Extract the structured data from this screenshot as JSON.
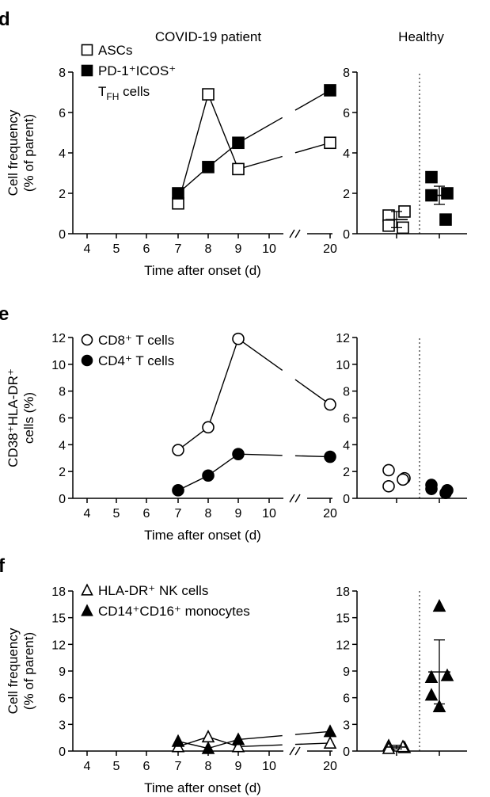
{
  "figure": {
    "panel_labels": [
      "d",
      "e",
      "f"
    ],
    "header_left": "COVID-19 patient",
    "header_right": "Healthy"
  },
  "chart_data": [
    {
      "panel": "d",
      "type": "line",
      "xlabel": "Time after onset (d)",
      "ylabel_lines": [
        "Cell frequency",
        "(% of parent)"
      ],
      "xticks": [
        "4",
        "5",
        "6",
        "7",
        "8",
        "9",
        "10",
        "20"
      ],
      "yticks": [
        "0",
        "2",
        "4",
        "6",
        "8"
      ],
      "ylim": [
        0,
        8
      ],
      "axis_break": "//",
      "series": [
        {
          "name": "ASCs",
          "marker": "square",
          "filled": false,
          "x": [
            "7",
            "8",
            "9",
            "20"
          ],
          "y": [
            1.5,
            6.9,
            3.2,
            4.5
          ]
        },
        {
          "name": "PD-1⁺ICOS⁺",
          "name_line2": "T",
          "name_line2_sub": "FH",
          "name_line2_tail": " cells",
          "marker": "square",
          "filled": true,
          "x": [
            "7",
            "8",
            "9",
            "20"
          ],
          "y": [
            2.0,
            3.3,
            4.5,
            7.1
          ]
        }
      ],
      "healthy": {
        "yticks": [
          "0",
          "2",
          "4",
          "6",
          "8"
        ],
        "groups": [
          {
            "marker": "square",
            "filled": false,
            "points": [
              0.9,
              1.1,
              0.4,
              0.3
            ],
            "mean": 0.7,
            "sd": 0.4
          },
          {
            "marker": "square",
            "filled": true,
            "points": [
              2.8,
              2.0,
              1.9,
              0.7
            ],
            "mean": 1.9,
            "sd": 0.45
          }
        ]
      }
    },
    {
      "panel": "e",
      "type": "line",
      "xlabel": "Time after onset (d)",
      "ylabel_lines": [
        "CD38⁺HLA-DR⁺",
        "cells (%)"
      ],
      "xticks": [
        "4",
        "5",
        "6",
        "7",
        "8",
        "9",
        "10",
        "20"
      ],
      "yticks": [
        "0",
        "2",
        "4",
        "6",
        "8",
        "10",
        "12"
      ],
      "ylim": [
        0,
        12
      ],
      "axis_break": "//",
      "series": [
        {
          "name": "CD8⁺ T cells",
          "marker": "circle",
          "filled": false,
          "x": [
            "7",
            "8",
            "9",
            "20"
          ],
          "y": [
            3.6,
            5.3,
            11.9,
            7.0
          ]
        },
        {
          "name": "CD4⁺ T cells",
          "marker": "circle",
          "filled": true,
          "x": [
            "7",
            "8",
            "9",
            "20"
          ],
          "y": [
            0.6,
            1.7,
            3.3,
            3.1
          ]
        }
      ],
      "healthy": {
        "yticks": [
          "0",
          "2",
          "4",
          "6",
          "8",
          "10",
          "12"
        ],
        "groups": [
          {
            "marker": "circle",
            "filled": false,
            "points": [
              2.1,
              1.5,
              0.9,
              1.4
            ]
          },
          {
            "marker": "circle",
            "filled": true,
            "points": [
              1.0,
              0.6,
              0.7,
              0.4
            ]
          }
        ]
      }
    },
    {
      "panel": "f",
      "type": "line",
      "xlabel": "Time after onset (d)",
      "ylabel_lines": [
        "Cell frequency",
        "(% of parent)"
      ],
      "xticks": [
        "4",
        "5",
        "6",
        "7",
        "8",
        "9",
        "10",
        "20"
      ],
      "yticks": [
        "0",
        "3",
        "6",
        "9",
        "12",
        "15",
        "18"
      ],
      "ylim": [
        0,
        18
      ],
      "axis_break": "//",
      "series": [
        {
          "name": "HLA-DR⁺ NK cells",
          "marker": "triangle",
          "filled": false,
          "x": [
            "7",
            "8",
            "9",
            "20"
          ],
          "y": [
            0.5,
            1.6,
            0.5,
            0.9
          ]
        },
        {
          "name": "CD14⁺CD16⁺ monocytes",
          "marker": "triangle",
          "filled": true,
          "x": [
            "7",
            "8",
            "9",
            "20"
          ],
          "y": [
            1.1,
            0.3,
            1.3,
            2.2
          ]
        }
      ],
      "healthy": {
        "yticks": [
          "0",
          "3",
          "6",
          "9",
          "12",
          "15",
          "18"
        ],
        "groups": [
          {
            "marker": "triangle",
            "filled": false,
            "points": [
              0.6,
              0.4,
              0.3,
              0.5
            ],
            "mean": 0.45,
            "sd": 0.2
          },
          {
            "marker": "triangle",
            "filled": true,
            "points": [
              16.3,
              8.3,
              8.5,
              6.3,
              5.0
            ],
            "mean": 8.9,
            "sd": 3.6
          }
        ]
      }
    }
  ]
}
